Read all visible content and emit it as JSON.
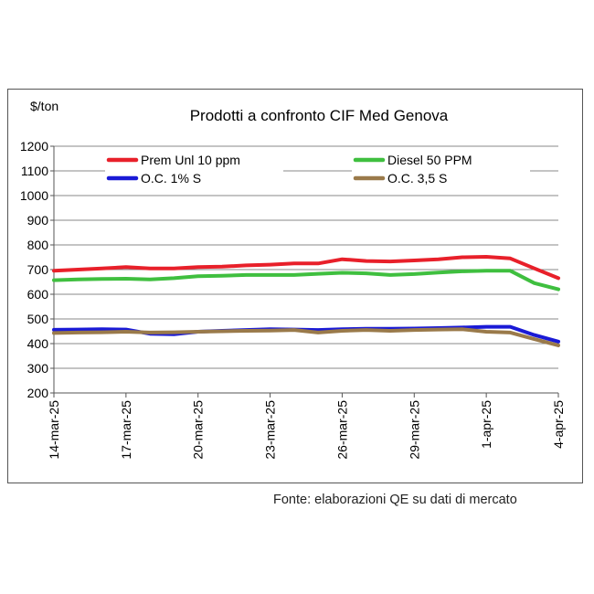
{
  "chart_data": {
    "type": "line",
    "title": "Prodotti a confronto CIF Med Genova",
    "unit_label": "$/ton",
    "ylim": [
      200,
      1200
    ],
    "y_ticks": [
      "200",
      "300",
      "400",
      "500",
      "600",
      "700",
      "800",
      "900",
      "1000",
      "1100",
      "1200"
    ],
    "x_tick_labels": [
      "14-mar-25",
      "17-mar-25",
      "20-mar-25",
      "23-mar-25",
      "26-mar-25",
      "29-mar-25",
      "1-apr-25",
      "4-apr-25"
    ],
    "x": [
      "14-mar-25",
      "15-mar-25",
      "16-mar-25",
      "17-mar-25",
      "18-mar-25",
      "19-mar-25",
      "20-mar-25",
      "21-mar-25",
      "22-mar-25",
      "23-mar-25",
      "24-mar-25",
      "25-mar-25",
      "26-mar-25",
      "27-mar-25",
      "28-mar-25",
      "29-mar-25",
      "30-mar-25",
      "31-mar-25",
      "1-apr-25",
      "2-apr-25",
      "3-apr-25",
      "4-apr-25"
    ],
    "grid": "horizontal",
    "legend_position": "top",
    "series": [
      {
        "name": "Prem Unl 10 ppm",
        "color": "#e8202a",
        "values": [
          695,
          700,
          705,
          710,
          705,
          705,
          710,
          712,
          717,
          720,
          725,
          725,
          742,
          735,
          733,
          737,
          742,
          750,
          752,
          745,
          705,
          665
        ]
      },
      {
        "name": "Diesel 50 PPM",
        "color": "#3fbf3f",
        "values": [
          657,
          660,
          662,
          663,
          660,
          665,
          673,
          675,
          678,
          678,
          678,
          683,
          687,
          685,
          678,
          682,
          688,
          693,
          695,
          695,
          645,
          620
        ]
      },
      {
        "name": "O.C. 1% S",
        "color": "#1a1ad6",
        "values": [
          456,
          457,
          458,
          457,
          440,
          438,
          448,
          452,
          455,
          458,
          457,
          455,
          458,
          460,
          460,
          461,
          463,
          465,
          468,
          468,
          435,
          408
        ]
      },
      {
        "name": "O.C. 3,5 S",
        "color": "#9a7a4a",
        "values": [
          443,
          445,
          446,
          448,
          445,
          446,
          448,
          450,
          452,
          453,
          455,
          445,
          452,
          455,
          452,
          455,
          457,
          458,
          448,
          445,
          418,
          393
        ]
      }
    ]
  },
  "source_note": "Fonte: elaborazioni QE su dati di mercato"
}
